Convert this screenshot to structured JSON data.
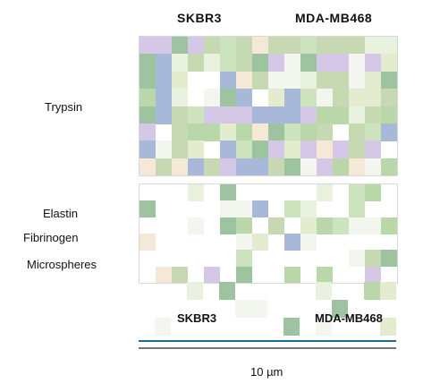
{
  "columns": [
    {
      "label": "SKBR3"
    },
    {
      "label": "MDA-MB468"
    }
  ],
  "rows": [
    {
      "label": "Trypsin"
    },
    {
      "label": "Elastin"
    },
    {
      "label": "Fibrinogen"
    },
    {
      "label": "Microspheres"
    }
  ],
  "sub_labels": [
    {
      "label": "SKBR3"
    },
    {
      "label": "MDA-MB468"
    }
  ],
  "scale_label": "10 µm",
  "colors": {
    "tile_palette": [
      "#b9d7a8",
      "#cde3bd",
      "#e9f1df",
      "#9dc3a0",
      "#d5c8e6",
      "#f3f6ee",
      "#a7b8d8",
      "#e4ecd0",
      "#c6d9b2",
      "#f6e8d7"
    ],
    "accent": "#1a6e96"
  }
}
